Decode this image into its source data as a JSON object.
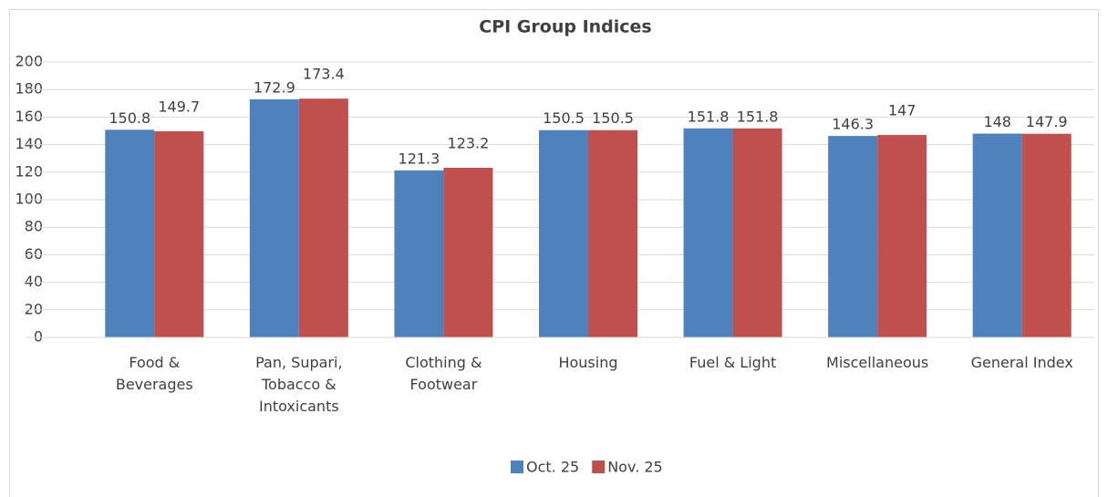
{
  "chart_data": {
    "type": "bar",
    "title": "CPI Group Indices",
    "categories": [
      "Food & Beverages",
      "Pan, Supari, Tobacco & Intoxicants",
      "Clothing & Footwear",
      "Housing",
      "Fuel & Light",
      "Miscellaneous",
      "General Index"
    ],
    "series": [
      {
        "name": "Oct. 25",
        "color": "#4f81bd",
        "values": [
          150.8,
          172.9,
          121.3,
          150.5,
          151.8,
          146.3,
          148
        ]
      },
      {
        "name": "Nov. 25",
        "color": "#c0504d",
        "values": [
          149.7,
          173.4,
          123.2,
          150.5,
          151.8,
          147,
          147.9
        ]
      }
    ],
    "ylim": [
      0,
      200
    ],
    "yticks": [
      0,
      20,
      40,
      60,
      80,
      100,
      120,
      140,
      160,
      180,
      200
    ],
    "grid": true,
    "legend": "bottom"
  }
}
